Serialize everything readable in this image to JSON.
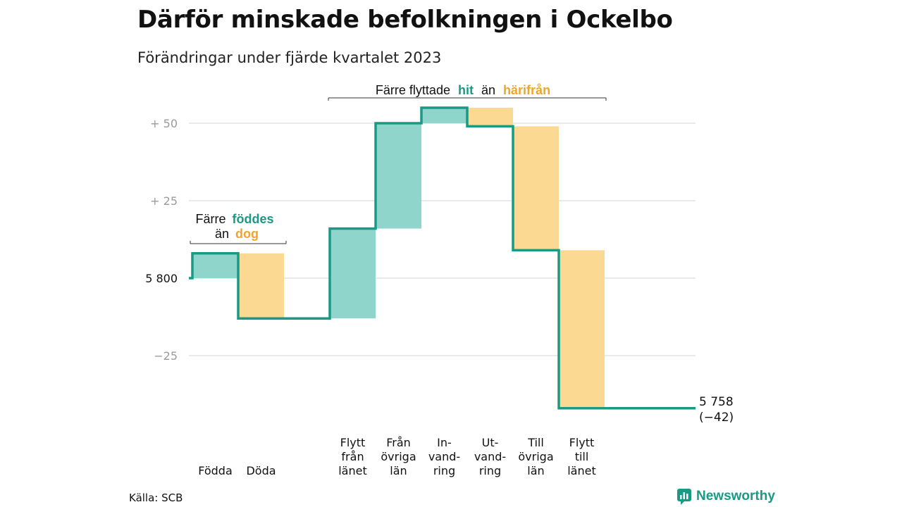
{
  "title": "Därför minskade befolkningen i Ockelbo",
  "subtitle": "Förändringar under fjärde kvartalet 2023",
  "source": "Källa: SCB",
  "brand": "Newsworthy",
  "colors": {
    "teal": "#1a9985",
    "teal_fill": "#8fd5cb",
    "orange_fill": "#fcd993",
    "orange_text": "#f0a52a",
    "grid": "#dddddd"
  },
  "annotations": {
    "births": {
      "line1": "Färre",
      "line1_hl": "föddes",
      "line2": "än",
      "line2_hl": "dog"
    },
    "migration": {
      "part1": "Färre flyttade",
      "hl1": "hit",
      "part2": "än",
      "hl2": "härifrån"
    }
  },
  "end_label": {
    "value": "5 758",
    "change": "(−42)"
  },
  "chart_data": {
    "type": "waterfall",
    "baseline_label": "5  800",
    "baseline_value": 5800,
    "yticks": [
      {
        "value": 50,
        "label": "+  50"
      },
      {
        "value": 25,
        "label": "+  25"
      },
      {
        "value": 0,
        "label": "5  800"
      },
      {
        "value": -25,
        "label": "−25"
      }
    ],
    "ylim": [
      -42,
      55
    ],
    "start": 8,
    "steps": [
      {
        "category": [
          "Födda"
        ],
        "delta": 8,
        "kind": "in"
      },
      {
        "category": [
          "Döda"
        ],
        "delta": -21,
        "kind": "out"
      },
      {
        "category": [],
        "delta": 0,
        "kind": "none"
      },
      {
        "category": [
          "Flytt",
          "från",
          "länet"
        ],
        "delta": 29,
        "kind": "in"
      },
      {
        "category": [
          "Från",
          "övriga",
          "län"
        ],
        "delta": 34,
        "kind": "in"
      },
      {
        "category": [
          "In-",
          "vand-",
          "ring"
        ],
        "delta": 5,
        "kind": "in"
      },
      {
        "category": [
          "Ut-",
          "vand-",
          "ring"
        ],
        "delta": -6,
        "kind": "out"
      },
      {
        "category": [
          "Till",
          "övriga",
          "län"
        ],
        "delta": -40,
        "kind": "out"
      },
      {
        "category": [
          "Flytt",
          "till",
          "länet"
        ],
        "delta": -51,
        "kind": "out"
      }
    ],
    "end_value": -42
  }
}
